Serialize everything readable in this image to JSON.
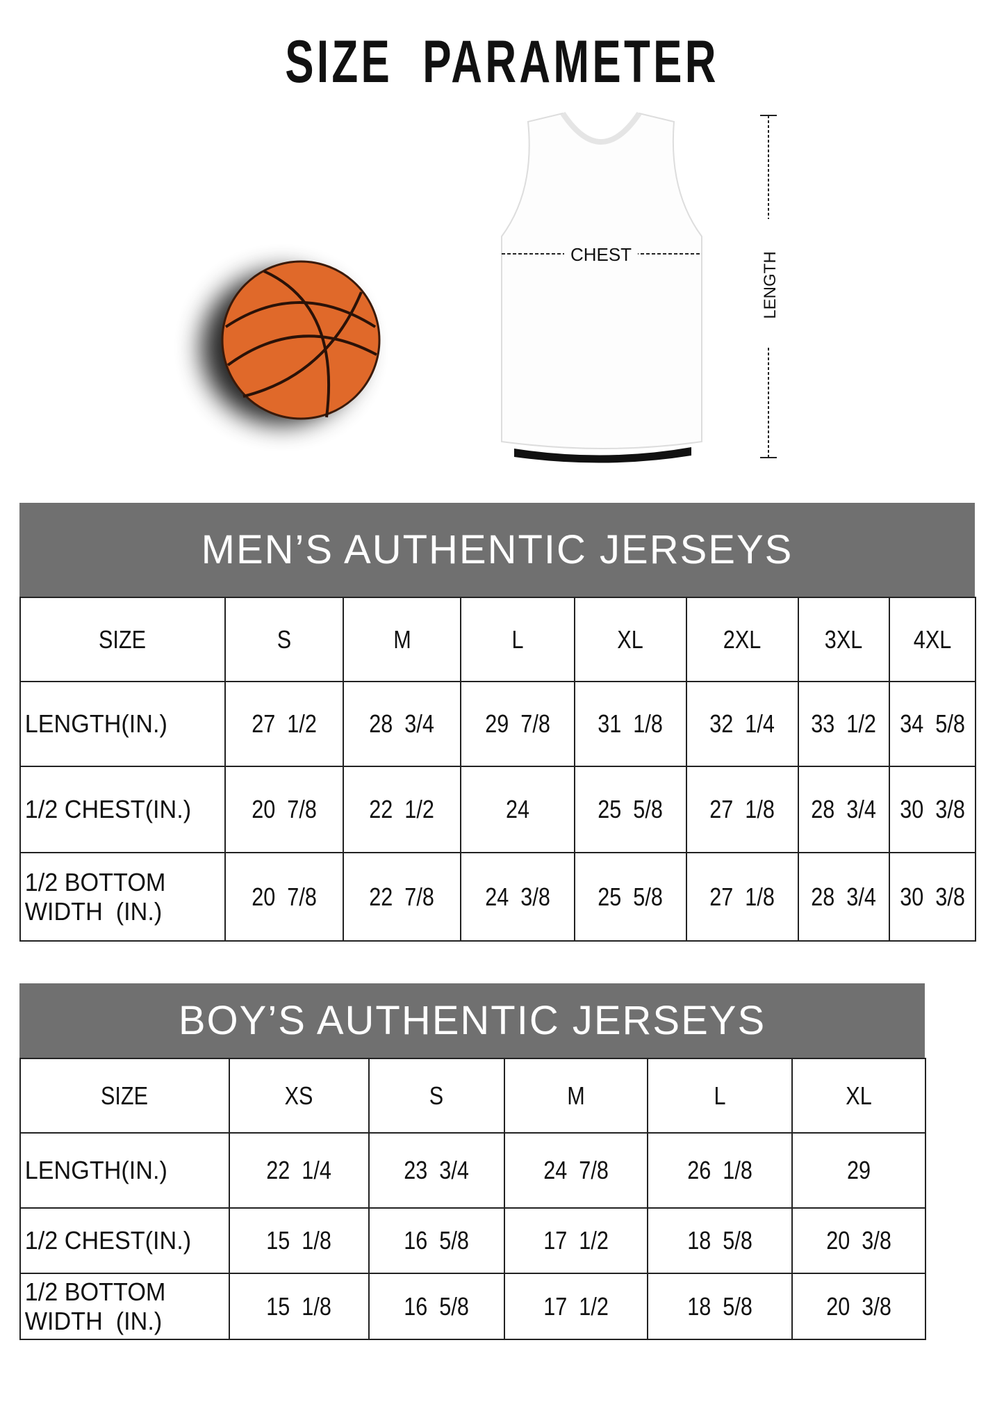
{
  "title": "SIZE PARAMETER",
  "diagram": {
    "chest_label": "CHEST",
    "length_label": "LENGTH"
  },
  "colors": {
    "band": "#707070",
    "ball": "#e0692a"
  },
  "mens": {
    "heading": "MEN’S AUTHENTIC JERSEYS",
    "header": [
      "SIZE",
      "S",
      "M",
      "L",
      "XL",
      "2XL",
      "3XL",
      "4XL"
    ],
    "rows": [
      [
        "LENGTH(IN.)",
        "27  1/2",
        "28  3/4",
        "29  7/8",
        "31  1/8",
        "32  1/4",
        "33  1/2",
        "34  5/8"
      ],
      [
        "1/2 CHEST(IN.)",
        "20  7/8",
        "22  1/2",
        "24",
        "25  5/8",
        "27  1/8",
        "28  3/4",
        "30  3/8"
      ],
      [
        "1/2 BOTTOM WIDTH  (IN.)",
        "20  7/8",
        "22  7/8",
        "24  3/8",
        "25  5/8",
        "27  1/8",
        "28  3/4",
        "30  3/8"
      ]
    ]
  },
  "boys": {
    "heading": "BOY’S AUTHENTIC JERSEYS",
    "header": [
      "SIZE",
      "XS",
      "S",
      "M",
      "L",
      "XL"
    ],
    "rows": [
      [
        "LENGTH(IN.)",
        "22  1/4",
        "23  3/4",
        "24  7/8",
        "26  1/8",
        "29"
      ],
      [
        "1/2 CHEST(IN.)",
        "15  1/8",
        "16  5/8",
        "17  1/2",
        "18  5/8",
        "20  3/8"
      ],
      [
        "1/2 BOTTOM WIDTH  (IN.)",
        "15  1/8",
        "16  5/8",
        "17  1/2",
        "18  5/8",
        "20  3/8"
      ]
    ]
  }
}
